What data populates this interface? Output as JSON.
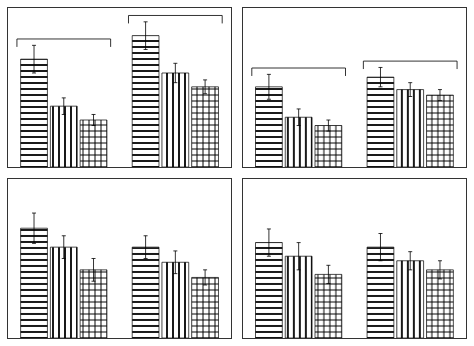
{
  "chart_data": [
    {
      "type": "bar",
      "categories": [
        null,
        null
      ],
      "series": [
        {
          "values": [
            0.78,
            0.95
          ],
          "errors": [
            0.1,
            0.1
          ]
        },
        {
          "values": [
            0.44,
            0.68
          ],
          "errors": [
            0.06,
            0.07
          ]
        },
        {
          "values": [
            0.34,
            0.58
          ],
          "errors": [
            0.04,
            0.05
          ]
        }
      ],
      "ylim": [
        0,
        1.15
      ],
      "yticks": [],
      "grid": false,
      "tick_labels": false,
      "legend": false,
      "color": "black",
      "annotations": [
        {
          "x": 0,
          "shape": "bracket"
        },
        {
          "x": 1,
          "shape": "bracket"
        }
      ]
    },
    {
      "type": "bar",
      "categories": [
        null,
        null
      ],
      "series": [
        {
          "values": [
            0.58,
            0.65
          ],
          "errors": [
            0.09,
            0.07
          ]
        },
        {
          "values": [
            0.36,
            0.56
          ],
          "errors": [
            0.06,
            0.05
          ]
        },
        {
          "values": [
            0.3,
            0.52
          ],
          "errors": [
            0.04,
            0.04
          ]
        }
      ],
      "ylim": [
        0,
        1.15
      ],
      "yticks": [],
      "grid": false,
      "tick_labels": false,
      "legend": false,
      "color": "black",
      "annotations": [
        {
          "x": 0,
          "shape": "bracket"
        },
        {
          "x": 1,
          "shape": "bracket"
        }
      ]
    },
    {
      "type": "bar",
      "categories": [
        null,
        null
      ],
      "series": [
        {
          "values": [
            0.29,
            0.24
          ],
          "errors": [
            0.04,
            0.03
          ]
        },
        {
          "values": [
            0.24,
            0.2
          ],
          "errors": [
            0.03,
            0.03
          ]
        },
        {
          "values": [
            0.18,
            0.16
          ],
          "errors": [
            0.03,
            0.02
          ]
        }
      ],
      "ylim": [
        0,
        0.42
      ],
      "yticks": [],
      "grid": false,
      "tick_labels": false,
      "legend": false,
      "color": "black"
    },
    {
      "type": "bar",
      "categories": [
        null,
        null
      ],
      "series": [
        {
          "values": [
            0.21,
            0.2
          ],
          "errors": [
            0.03,
            0.03
          ]
        },
        {
          "values": [
            0.18,
            0.17
          ],
          "errors": [
            0.03,
            0.02
          ]
        },
        {
          "values": [
            0.14,
            0.15
          ],
          "errors": [
            0.02,
            0.02
          ]
        }
      ],
      "ylim": [
        0,
        0.35
      ],
      "yticks": [],
      "grid": false,
      "tick_labels": false,
      "legend": false,
      "color": "black"
    }
  ]
}
